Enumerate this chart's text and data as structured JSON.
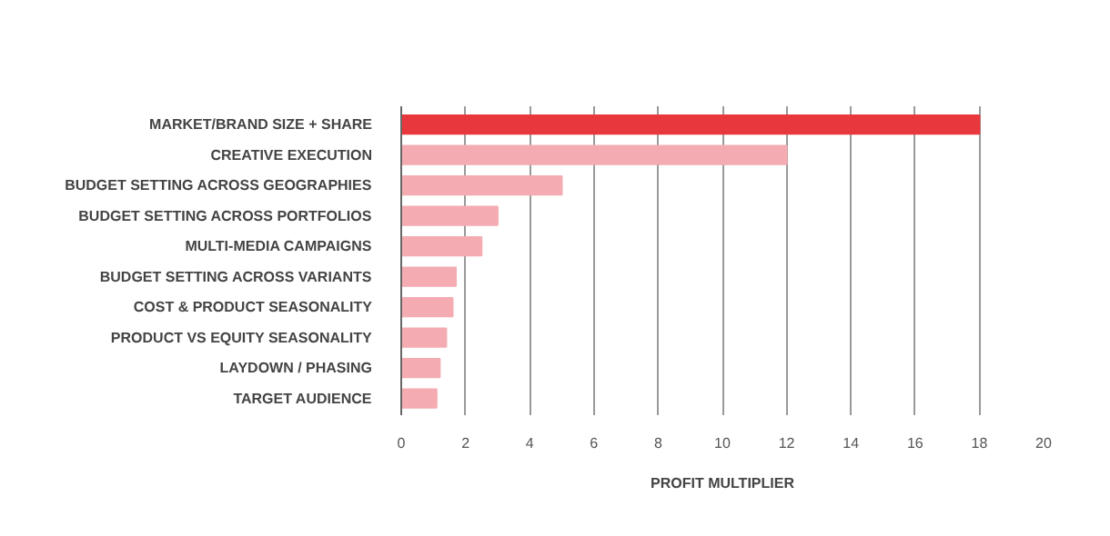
{
  "chart_data": {
    "type": "bar",
    "orientation": "horizontal",
    "xlabel": "PROFIT MULTIPLIER",
    "categories": [
      "MARKET/BRAND SIZE + SHARE",
      "CREATIVE EXECUTION",
      "BUDGET SETTING ACROSS GEOGRAPHIES",
      "BUDGET SETTING ACROSS PORTFOLIOS",
      "MULTI-MEDIA CAMPAIGNS",
      "BUDGET SETTING ACROSS VARIANTS",
      "COST & PRODUCT SEASONALITY",
      "PRODUCT VS EQUITY SEASONALITY",
      "LAYDOWN / PHASING",
      "TARGET AUDIENCE"
    ],
    "values": [
      18,
      12,
      5,
      3,
      2.5,
      1.7,
      1.6,
      1.4,
      1.2,
      1.1
    ],
    "colors": [
      "#e8383d",
      "#f4acb2",
      "#f4acb2",
      "#f4acb2",
      "#f4acb2",
      "#f4acb2",
      "#f4acb2",
      "#f4acb2",
      "#f4acb2",
      "#f4acb2"
    ],
    "xlim": [
      0,
      20
    ],
    "xticks": [
      0,
      2,
      4,
      6,
      8,
      10,
      12,
      14,
      16,
      18,
      20
    ],
    "grid": "x"
  }
}
